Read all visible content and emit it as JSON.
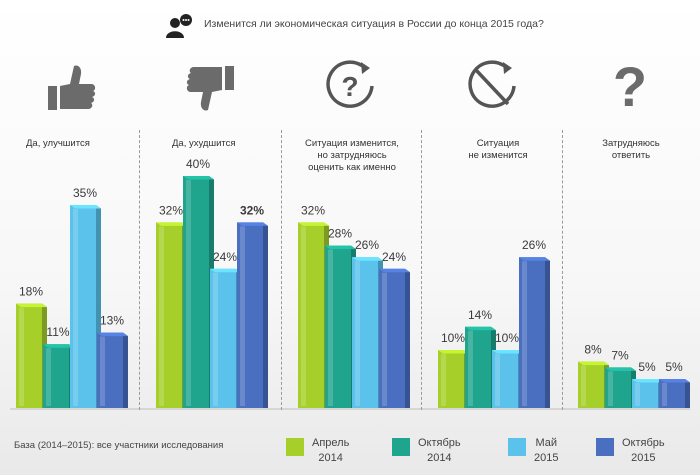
{
  "question": "Изменится ли экономическая ситуация в России до конца 2015 года?",
  "footnote": "База (2014–2015): все участники исследования",
  "chart_data": {
    "type": "bar",
    "categories": [
      "Да, улучшится",
      "Да, ухудшится",
      "Ситуация изменится,\nно затрудняюсь\nоценить как именно",
      "Ситуация\nне изменится",
      "Затрудняюсь\nответить"
    ],
    "series": [
      {
        "name": "Апрель\n2014",
        "values": [
          18,
          32,
          32,
          10,
          8
        ],
        "color": "#a6cf2a"
      },
      {
        "name": "Октябрь\n2014",
        "values": [
          11,
          40,
          28,
          14,
          7
        ],
        "color": "#1fa58e"
      },
      {
        "name": "Май\n2015",
        "values": [
          35,
          24,
          26,
          10,
          5
        ],
        "color": "#5bc2ec"
      },
      {
        "name": "Октябрь\n2015",
        "values": [
          13,
          32,
          24,
          26,
          5
        ],
        "color": "#4a6fc1"
      }
    ],
    "labels": [
      [
        "18%",
        "11%",
        "35%",
        "13%"
      ],
      [
        "32%",
        "40%",
        "24%",
        "32%"
      ],
      [
        "32%",
        "28%",
        "26%",
        "24%"
      ],
      [
        "10%",
        "14%",
        "10%",
        "26%"
      ],
      [
        "8%",
        "7%",
        "5%",
        "5%"
      ]
    ],
    "bold_labels": [
      [
        1,
        3
      ]
    ],
    "icons": [
      "thumbs-up-icon",
      "thumbs-down-icon",
      "question-circle-icon",
      "no-change-icon",
      "question-mark-icon"
    ],
    "ylim": [
      0,
      45
    ],
    "grid": false
  }
}
